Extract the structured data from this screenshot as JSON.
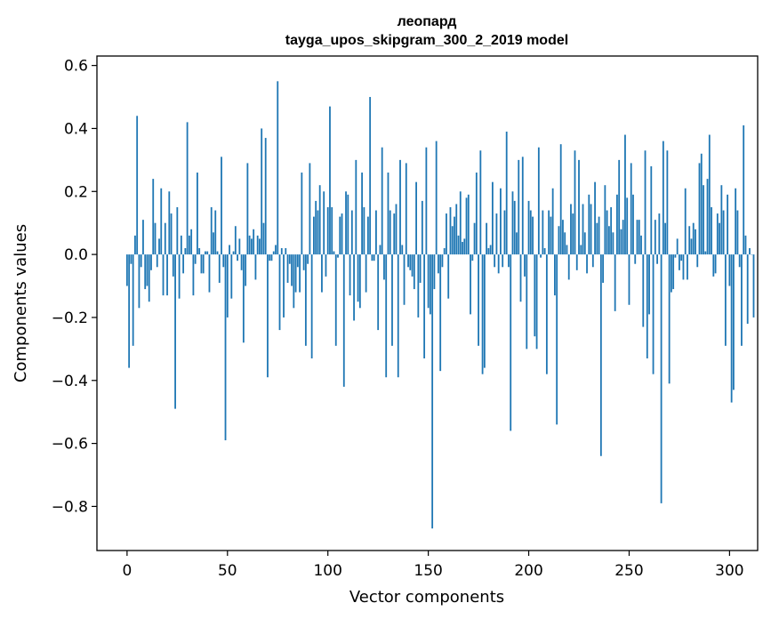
{
  "chart_data": {
    "type": "bar",
    "title": "леопард",
    "subtitle": "tayga_upos_skipgram_300_2_2019 model",
    "xlabel": "Vector components",
    "ylabel": "Components values",
    "xlim": [
      -15,
      314
    ],
    "ylim": [
      -0.94,
      0.63
    ],
    "xticks": [
      0,
      50,
      100,
      150,
      200,
      250,
      300
    ],
    "xtick_labels": [
      "0",
      "50",
      "100",
      "150",
      "200",
      "250",
      "300"
    ],
    "yticks": [
      0.6,
      0.4,
      0.2,
      0.0,
      -0.2,
      -0.4,
      -0.6,
      -0.8
    ],
    "ytick_labels": [
      "0.6",
      "0.4",
      "0.2",
      "0.0",
      "−0.2",
      "−0.4",
      "−0.6",
      "−0.8"
    ],
    "grid": false,
    "bar_color": "#1f77b4",
    "categories_start": 0,
    "values": [
      -0.1,
      -0.36,
      -0.03,
      -0.29,
      0.06,
      0.44,
      -0.17,
      -0.04,
      0.11,
      -0.11,
      -0.1,
      -0.15,
      -0.05,
      0.24,
      0.1,
      -0.04,
      0.05,
      0.21,
      -0.13,
      0.1,
      -0.13,
      0.2,
      0.13,
      -0.07,
      -0.49,
      0.15,
      -0.14,
      0.06,
      -0.06,
      0.02,
      0.42,
      0.06,
      0.08,
      -0.13,
      -0.03,
      0.26,
      0.02,
      -0.06,
      -0.06,
      0.01,
      0.01,
      -0.12,
      0.15,
      0.07,
      0.14,
      0.01,
      -0.09,
      0.31,
      -0.04,
      -0.59,
      -0.2,
      0.03,
      -0.14,
      0.01,
      0.09,
      -0.02,
      0.05,
      -0.05,
      -0.28,
      -0.1,
      0.29,
      0.06,
      0.05,
      0.08,
      -0.08,
      0.06,
      0.05,
      0.4,
      0.1,
      0.37,
      -0.39,
      -0.02,
      -0.02,
      0.01,
      0.03,
      0.55,
      -0.24,
      0.02,
      -0.2,
      0.02,
      -0.09,
      -0.03,
      -0.1,
      -0.17,
      -0.12,
      -0.04,
      -0.12,
      0.26,
      -0.05,
      -0.29,
      -0.03,
      0.29,
      -0.33,
      0.12,
      0.17,
      0.14,
      0.22,
      -0.12,
      0.2,
      -0.07,
      0.15,
      0.47,
      0.15,
      0.01,
      -0.29,
      -0.01,
      0.12,
      0.13,
      -0.42,
      0.2,
      0.19,
      -0.13,
      0.14,
      -0.21,
      0.3,
      -0.15,
      -0.17,
      0.26,
      0.15,
      -0.12,
      0.12,
      0.5,
      -0.02,
      -0.02,
      0.14,
      -0.24,
      0.03,
      0.34,
      -0.08,
      -0.39,
      0.26,
      0.14,
      -0.29,
      0.13,
      0.16,
      -0.39,
      0.3,
      0.03,
      -0.16,
      0.29,
      -0.04,
      -0.05,
      -0.07,
      -0.11,
      0.23,
      -0.2,
      -0.09,
      0.17,
      -0.33,
      0.34,
      -0.17,
      -0.19,
      -0.87,
      -0.11,
      0.36,
      -0.06,
      -0.37,
      -0.04,
      0.02,
      0.13,
      -0.14,
      0.15,
      0.09,
      0.12,
      0.16,
      0.06,
      0.2,
      0.04,
      0.05,
      0.18,
      0.19,
      -0.19,
      -0.02,
      0.1,
      0.26,
      -0.29,
      0.33,
      -0.38,
      -0.36,
      0.1,
      0.02,
      0.03,
      0.23,
      -0.04,
      0.13,
      -0.06,
      0.21,
      -0.04,
      0.14,
      0.39,
      -0.04,
      -0.56,
      0.2,
      0.17,
      0.07,
      0.3,
      -0.15,
      0.31,
      -0.07,
      -0.3,
      0.17,
      0.14,
      0.12,
      -0.26,
      -0.3,
      0.34,
      -0.01,
      0.14,
      0.02,
      -0.38,
      0.14,
      0.12,
      0.21,
      -0.13,
      -0.54,
      0.09,
      0.35,
      0.11,
      0.07,
      0.03,
      -0.08,
      0.16,
      0.13,
      0.33,
      -0.05,
      0.3,
      0.03,
      0.16,
      0.07,
      -0.06,
      0.19,
      0.16,
      -0.04,
      0.23,
      0.1,
      0.12,
      -0.64,
      -0.09,
      0.22,
      0.14,
      0.09,
      0.15,
      0.07,
      -0.18,
      0.19,
      0.3,
      0.08,
      0.11,
      0.38,
      0.18,
      -0.16,
      0.29,
      0.19,
      -0.03,
      0.11,
      0.11,
      0.06,
      -0.23,
      0.33,
      -0.33,
      -0.19,
      0.28,
      -0.38,
      0.11,
      -0.03,
      0.13,
      -0.79,
      0.36,
      0.1,
      0.33,
      -0.41,
      -0.12,
      -0.11,
      -0.01,
      0.05,
      -0.05,
      -0.02,
      -0.08,
      0.21,
      -0.08,
      0.09,
      0.05,
      0.1,
      0.08,
      -0.04,
      0.29,
      0.32,
      0.22,
      0.01,
      0.24,
      0.38,
      0.15,
      -0.07,
      -0.06,
      0.13,
      0.1,
      0.22,
      0.14,
      -0.29,
      0.19,
      -0.1,
      -0.47,
      -0.43,
      0.21,
      0.14,
      -0.04,
      -0.29,
      0.41,
      0.06,
      -0.22,
      0.02,
      0.0,
      -0.2
    ]
  }
}
